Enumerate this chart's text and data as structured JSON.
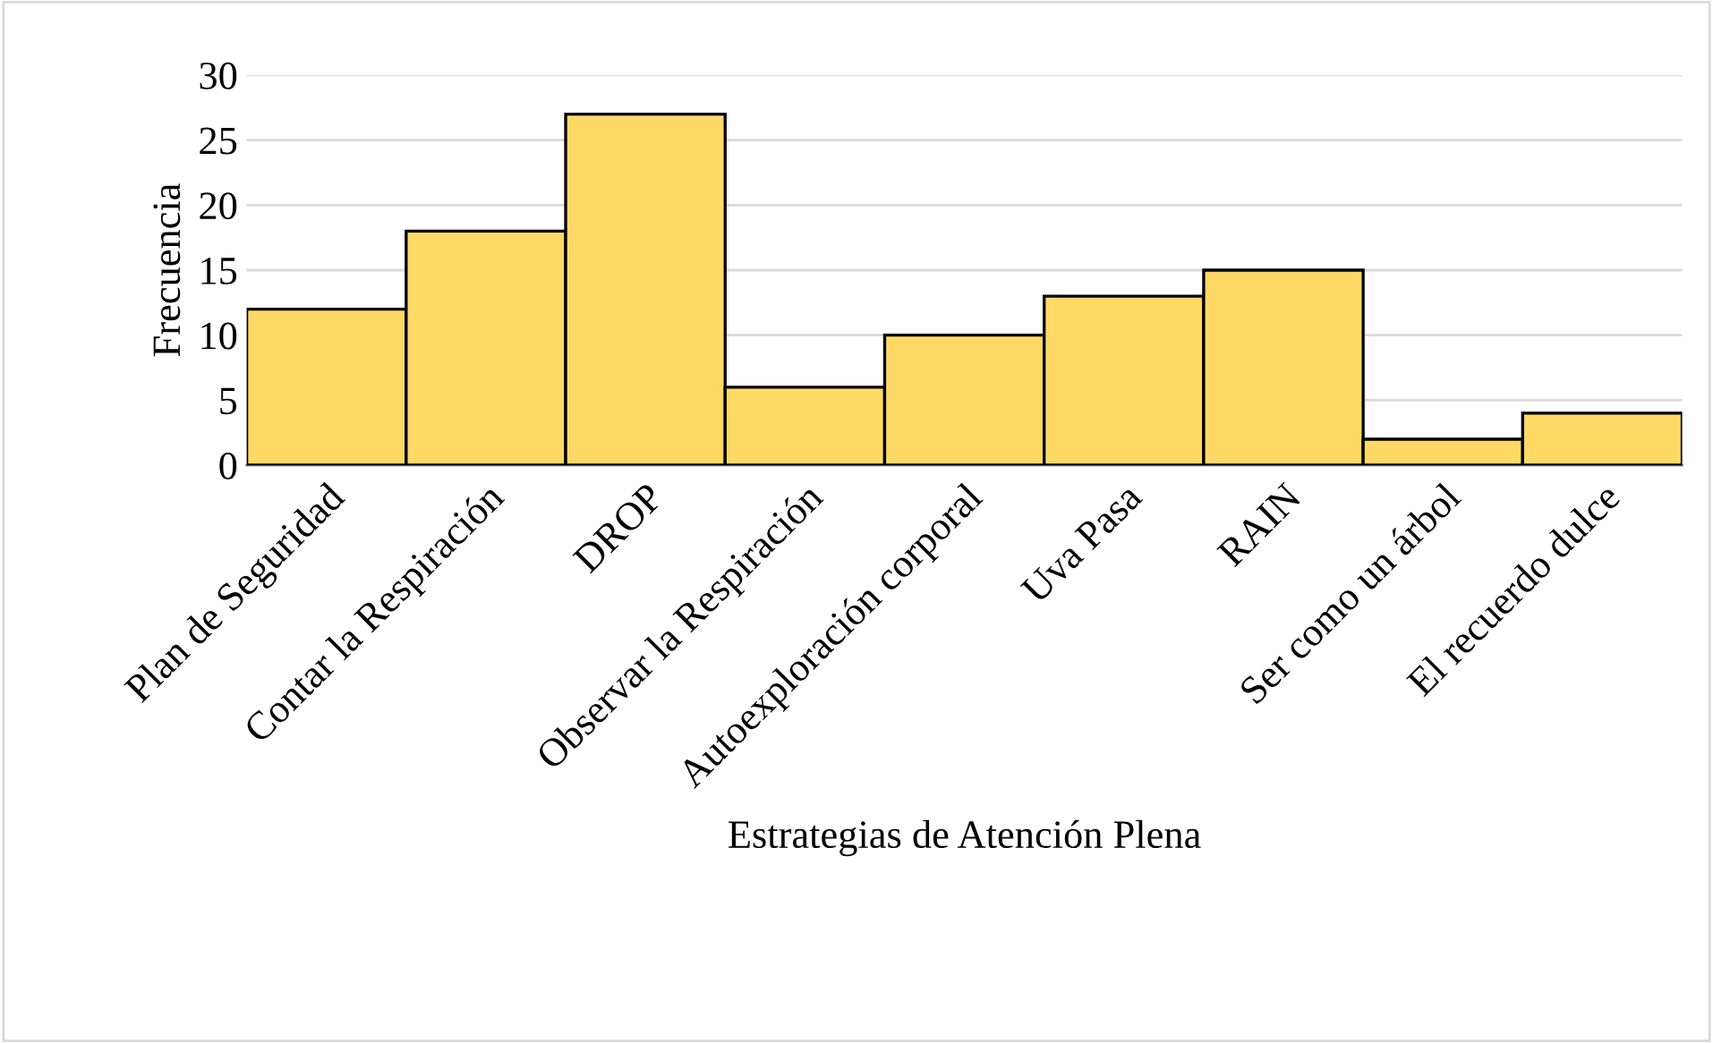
{
  "chart_data": {
    "type": "bar",
    "categories": [
      "Plan de Seguridad",
      "Contar la Respiración",
      "DROP",
      "Observar la Respiración",
      "Autoexploración corporal",
      "Uva Pasa",
      "RAIN",
      "Ser como un árbol",
      "El recuerdo dulce"
    ],
    "values": [
      12,
      18,
      27,
      6,
      10,
      13,
      15,
      2,
      4
    ],
    "color": "#ffd966",
    "xlabel": "Estrategias de Atención Plena",
    "ylabel": "Frecuencia",
    "ylim": [
      0,
      30
    ],
    "yticks": [
      0,
      5,
      10,
      15,
      20,
      25,
      30
    ],
    "grid": "y"
  }
}
